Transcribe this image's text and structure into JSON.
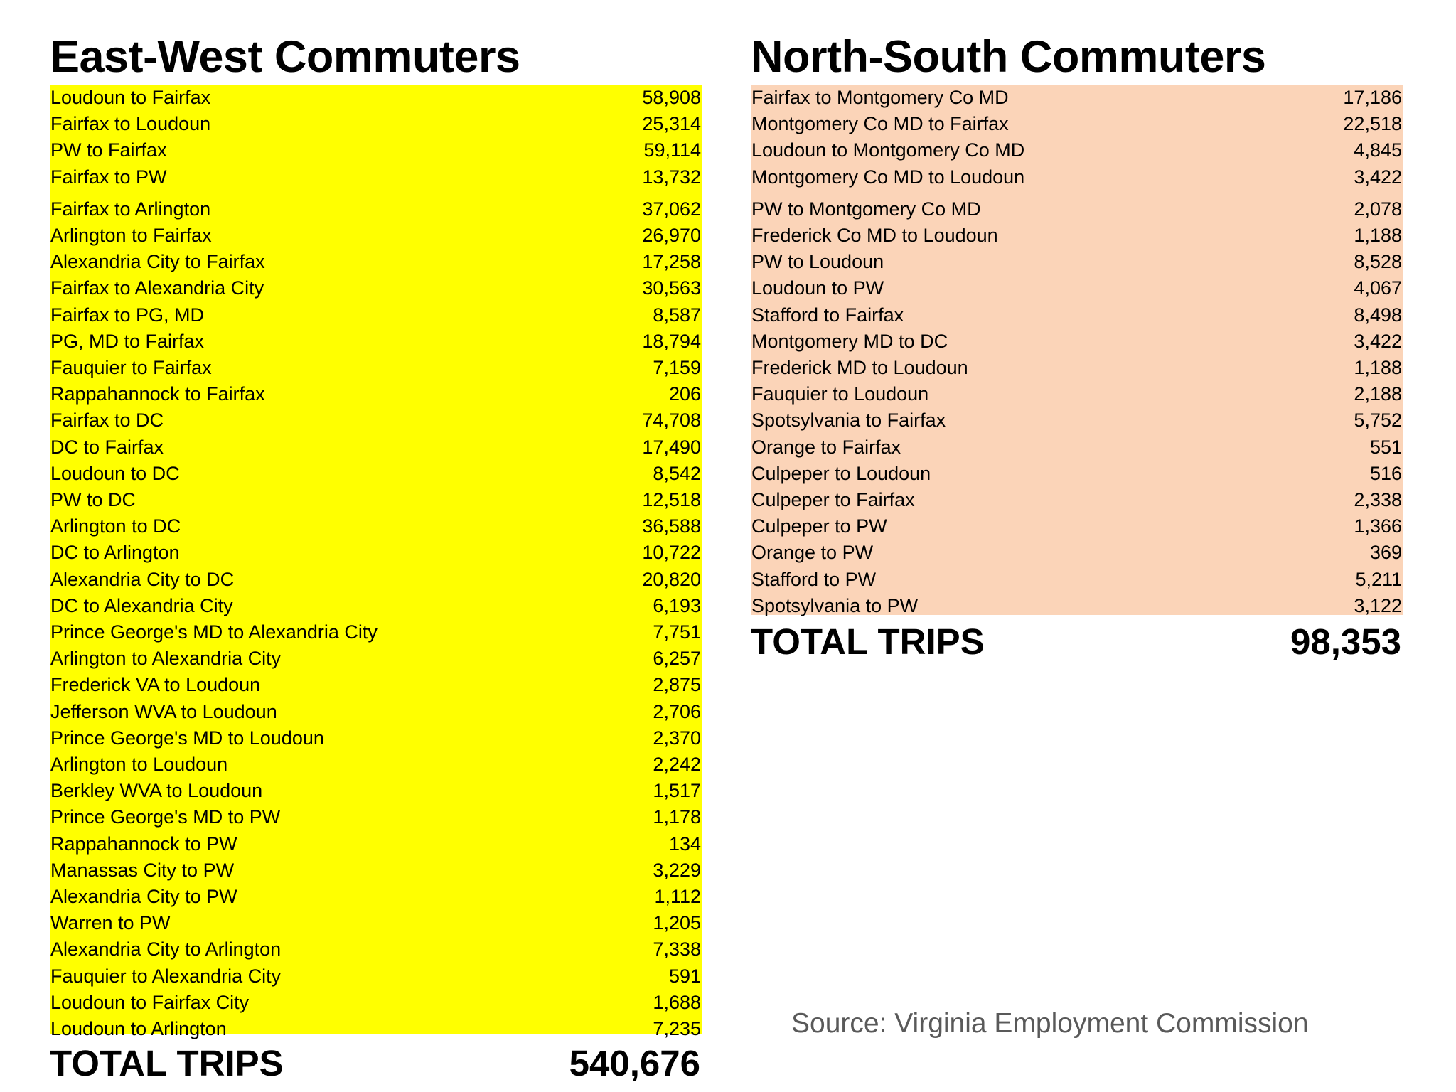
{
  "east_west": {
    "title": "East-West Commuters",
    "rows": [
      {
        "label": "Loudoun to Fairfax",
        "value": "58,908"
      },
      {
        "label": "Fairfax to Loudoun",
        "value": "25,314"
      },
      {
        "label": "PW to Fairfax",
        "value": "59,114"
      },
      {
        "label": "Fairfax to PW",
        "value": "13,732"
      },
      {
        "label": "Fairfax to Arlington",
        "value": "37,062"
      },
      {
        "label": "Arlington to Fairfax",
        "value": "26,970"
      },
      {
        "label": "Alexandria City to Fairfax",
        "value": "17,258"
      },
      {
        "label": "Fairfax to Alexandria City",
        "value": "30,563"
      },
      {
        "label": "Fairfax to PG, MD",
        "value": "8,587"
      },
      {
        "label": "PG, MD to Fairfax",
        "value": "18,794"
      },
      {
        "label": "Fauquier to Fairfax",
        "value": "7,159"
      },
      {
        "label": "Rappahannock to Fairfax",
        "value": "206"
      },
      {
        "label": "Fairfax to DC",
        "value": "74,708"
      },
      {
        "label": "DC to Fairfax",
        "value": "17,490"
      },
      {
        "label": "Loudoun to DC",
        "value": "8,542"
      },
      {
        "label": "PW to DC",
        "value": "12,518"
      },
      {
        "label": "Arlington to DC",
        "value": "36,588"
      },
      {
        "label": "DC to Arlington",
        "value": "10,722"
      },
      {
        "label": "Alexandria City to DC",
        "value": "20,820"
      },
      {
        "label": "DC to Alexandria City",
        "value": "6,193"
      },
      {
        "label": "Prince George's MD to Alexandria City",
        "value": "7,751"
      },
      {
        "label": "Arlington to Alexandria City",
        "value": "6,257"
      },
      {
        "label": "Frederick VA to Loudoun",
        "value": "2,875"
      },
      {
        "label": "Jefferson WVA to Loudoun",
        "value": "2,706"
      },
      {
        "label": "Prince George's MD to Loudoun",
        "value": "2,370"
      },
      {
        "label": "Arlington to Loudoun",
        "value": "2,242"
      },
      {
        "label": "Berkley WVA to Loudoun",
        "value": "1,517"
      },
      {
        "label": "Prince George's MD to PW",
        "value": "1,178"
      },
      {
        "label": "Rappahannock to PW",
        "value": "134"
      },
      {
        "label": "Manassas City to PW",
        "value": "3,229"
      },
      {
        "label": "Alexandria City to PW",
        "value": "1,112"
      },
      {
        "label": "Warren to PW",
        "value": "1,205"
      },
      {
        "label": "Alexandria City to Arlington",
        "value": "7,338"
      },
      {
        "label": "Fauquier to Alexandria City",
        "value": "591"
      },
      {
        "label": "Loudoun to Fairfax City",
        "value": "1,688"
      },
      {
        "label": "Loudoun to Arlington",
        "value": "7,235"
      }
    ],
    "total_label": "TOTAL TRIPS",
    "total_value": "540,676"
  },
  "north_south": {
    "title": "North-South Commuters",
    "rows": [
      {
        "label": "Fairfax to Montgomery Co MD",
        "value": "17,186"
      },
      {
        "label": "Montgomery Co MD to Fairfax",
        "value": "22,518"
      },
      {
        "label": "Loudoun to Montgomery Co MD",
        "value": "4,845"
      },
      {
        "label": "Montgomery Co MD to Loudoun",
        "value": "3,422"
      },
      {
        "label": "PW to Montgomery Co MD",
        "value": "2,078"
      },
      {
        "label": "Frederick Co MD to Loudoun",
        "value": "1,188"
      },
      {
        "label": "PW to Loudoun",
        "value": "8,528"
      },
      {
        "label": "Loudoun to PW",
        "value": "4,067"
      },
      {
        "label": "Stafford to Fairfax",
        "value": "8,498"
      },
      {
        "label": "Montgomery MD to DC",
        "value": "3,422"
      },
      {
        "label": "Frederick MD to Loudoun",
        "value": "1,188"
      },
      {
        "label": "Fauquier to Loudoun",
        "value": "2,188"
      },
      {
        "label": "Spotsylvania to Fairfax",
        "value": "5,752"
      },
      {
        "label": "Orange to Fairfax",
        "value": "551"
      },
      {
        "label": "Culpeper to Loudoun",
        "value": "516"
      },
      {
        "label": "Culpeper to Fairfax",
        "value": "2,338"
      },
      {
        "label": "Culpeper to PW",
        "value": "1,366"
      },
      {
        "label": "Orange to PW",
        "value": "369"
      },
      {
        "label": "Stafford to PW",
        "value": "5,211"
      },
      {
        "label": "Spotsylvania to PW",
        "value": "3,122"
      }
    ],
    "total_label": "TOTAL TRIPS",
    "total_value": "98,353"
  },
  "source": "Source: Virginia Employment Commission",
  "colors": {
    "east_west_fill": "#ffff00",
    "north_south_fill": "#fbd4b8",
    "source_text": "#595959"
  }
}
